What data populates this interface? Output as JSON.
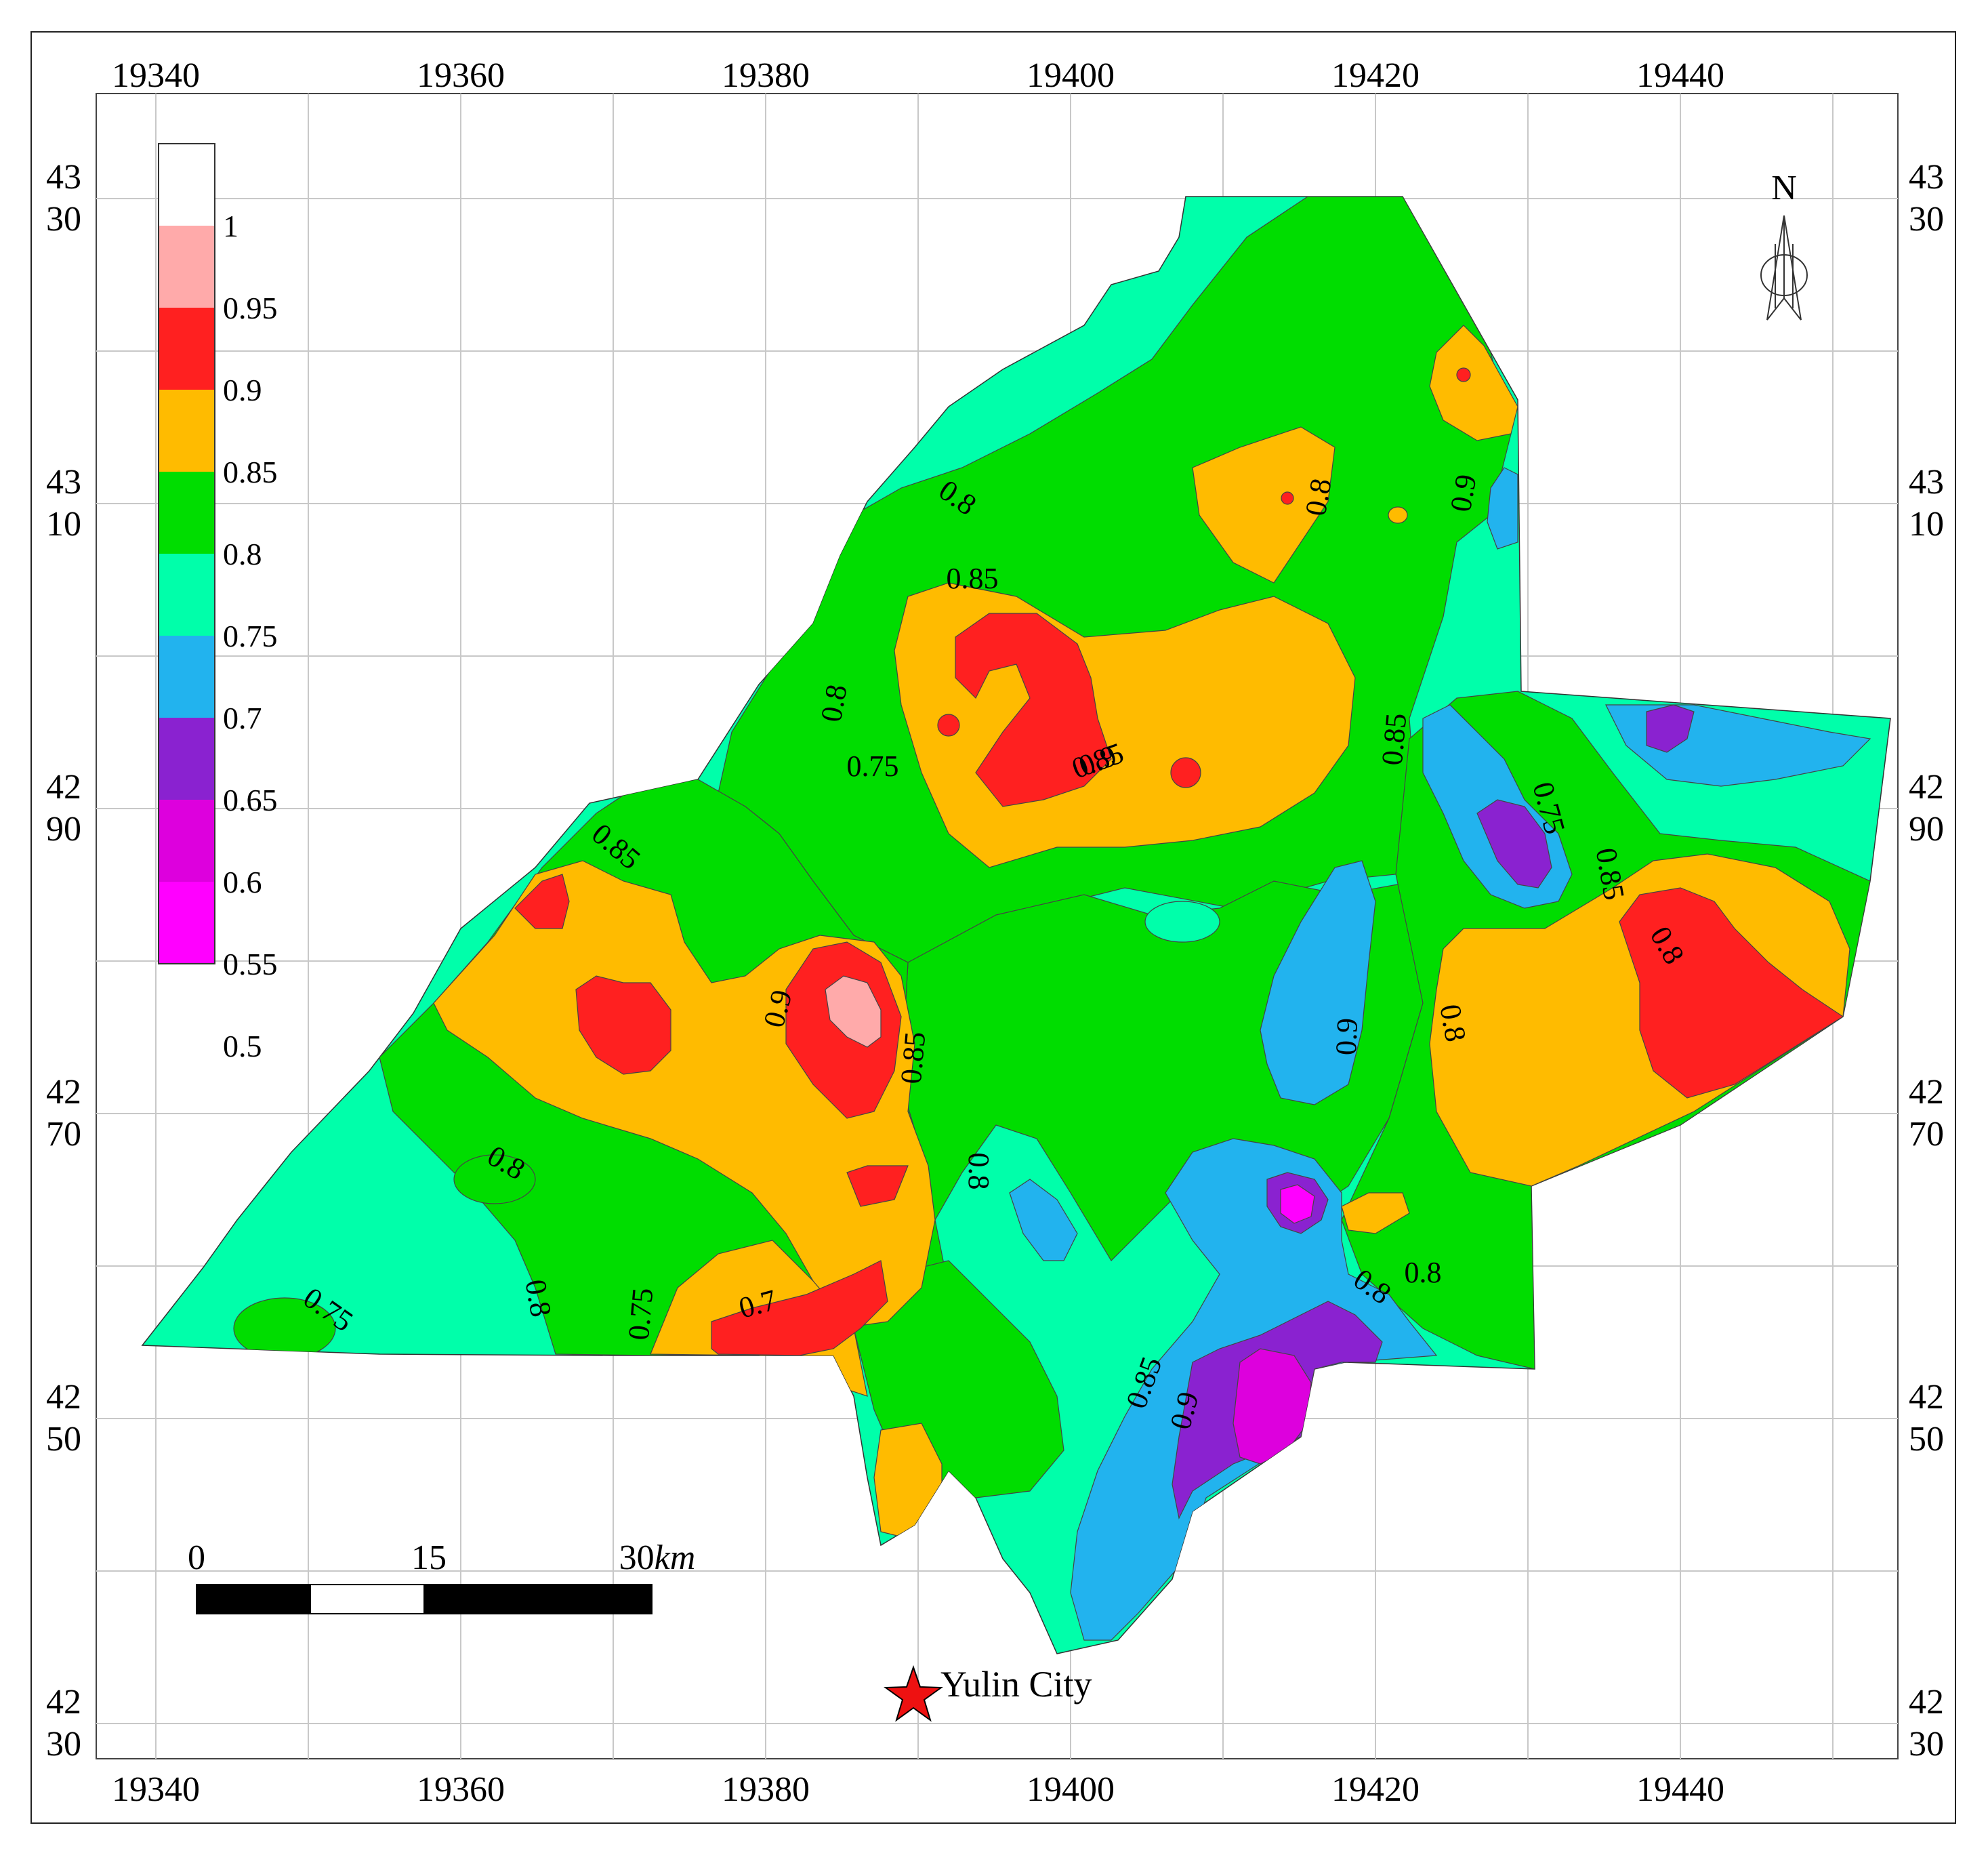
{
  "x_ticks": [
    "19340",
    "19360",
    "19380",
    "19400",
    "19420",
    "19440"
  ],
  "y_ticks": [
    {
      "top": "43",
      "bottom": "30"
    },
    {
      "top": "43",
      "bottom": "10"
    },
    {
      "top": "42",
      "bottom": "90"
    },
    {
      "top": "42",
      "bottom": "70"
    },
    {
      "top": "42",
      "bottom": "50"
    },
    {
      "top": "42",
      "bottom": "30"
    }
  ],
  "legend": {
    "labels": [
      "1",
      "0.95",
      "0.9",
      "0.85",
      "0.8",
      "0.75",
      "0.7",
      "0.65",
      "0.6",
      "0.55",
      "0.5"
    ],
    "colors": [
      "#ffffff",
      "#ffaaaa",
      "#ff2020",
      "#ffbb00",
      "#00dd00",
      "#00ffaa",
      "#22b3ee",
      "#8a22d0",
      "#dd00dd",
      "#ff00ff"
    ]
  },
  "north_label": "N",
  "scale_bar": {
    "labels": [
      "0",
      "15",
      "30"
    ],
    "unit": "km"
  },
  "city_label": "Yulin City",
  "contour_labels": [
    "0.8",
    "0.85",
    "0.8",
    "0.85",
    "0.8",
    "0.85",
    "0.9",
    "0.8",
    "0.75",
    "0.8",
    "0.85",
    "0.9",
    "0.9",
    "0.85",
    "0.75",
    "0.85",
    "0.9",
    "0.8",
    "0.8",
    "0.8",
    "0.8",
    "0.85",
    "0.9",
    "0.75",
    "0.8",
    "0.75",
    "0.7"
  ],
  "colors": {
    "c100": "#ffffff",
    "c095": "#ffaaaa",
    "c090": "#ff2020",
    "c085": "#ffbb00",
    "c080": "#00dd00",
    "c075": "#00ffaa",
    "c070": "#22b3ee",
    "c065": "#8a22d0",
    "c060": "#dd00dd",
    "c055": "#ff00ff",
    "star": "#ee1111"
  }
}
